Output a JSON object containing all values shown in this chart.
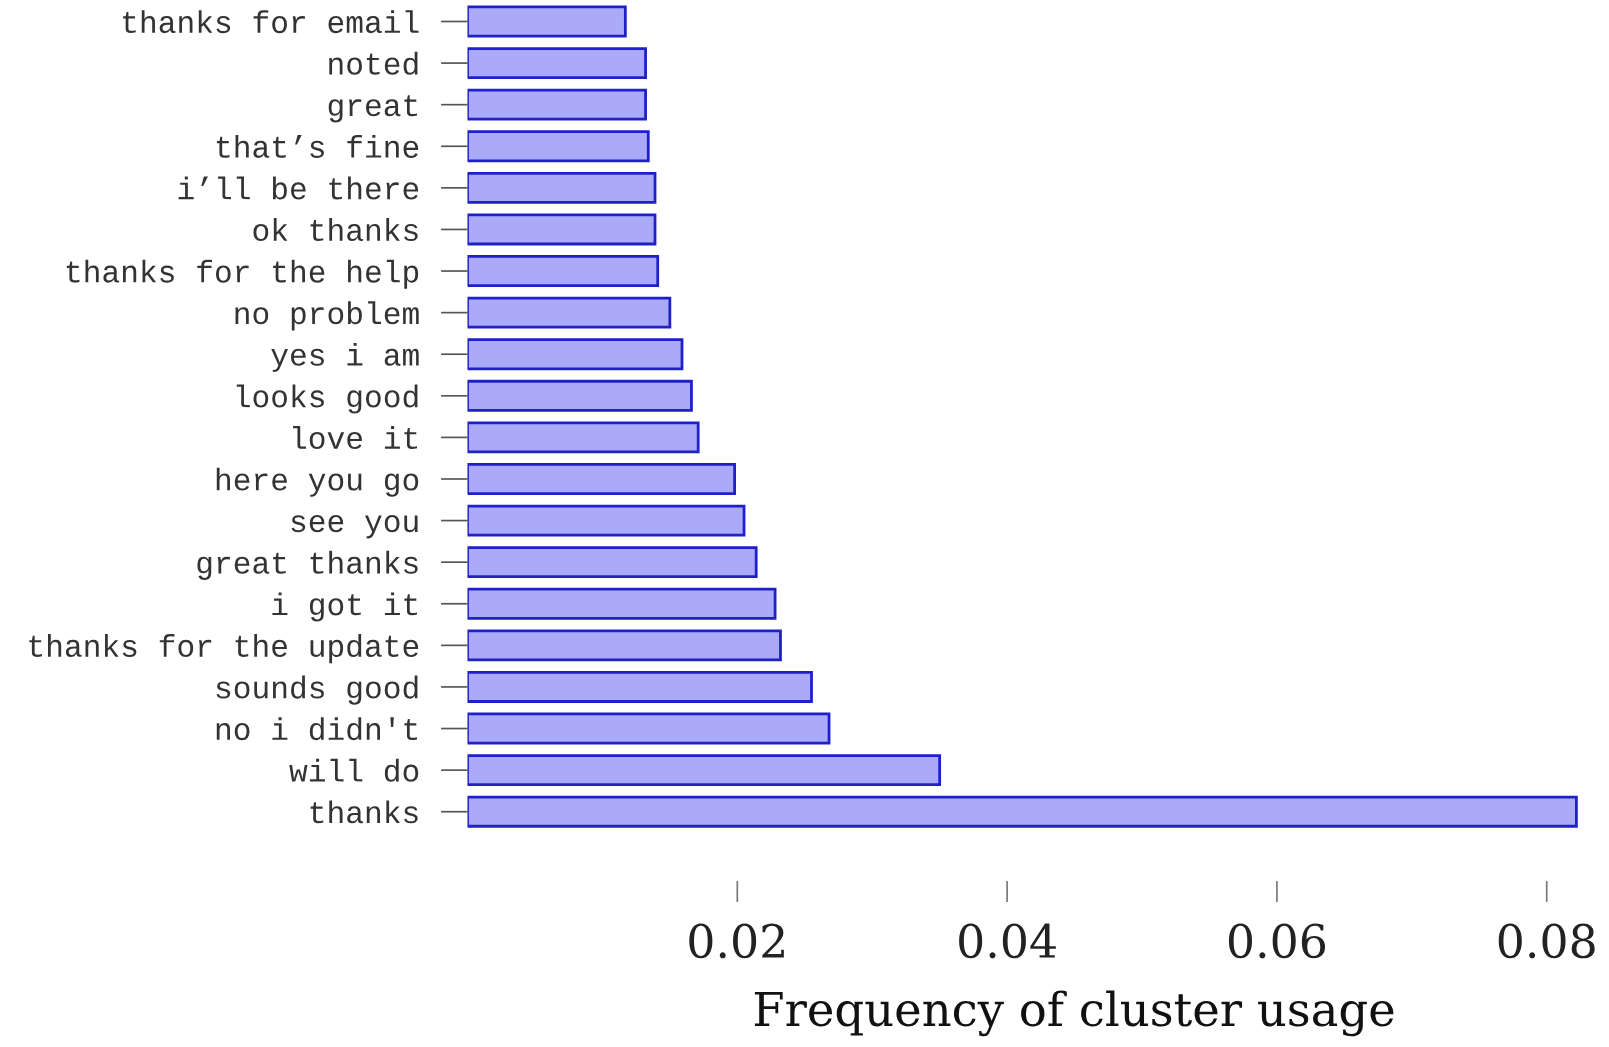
{
  "chart_data": {
    "type": "bar",
    "orientation": "horizontal",
    "xlabel": "Frequency of cluster usage",
    "categories": [
      "thanks for email",
      "noted",
      "great",
      "that’s fine",
      "i’ll be there",
      "ok thanks",
      "thanks for the help",
      "no problem",
      "yes i am",
      "looks good",
      "love it",
      "here you go",
      "see you",
      "great thanks",
      "i got it",
      "thanks for the update",
      "sounds good",
      "no i didn't",
      "will do",
      "thanks"
    ],
    "values": [
      0.0117,
      0.0132,
      0.0132,
      0.0134,
      0.0139,
      0.0139,
      0.0141,
      0.015,
      0.0159,
      0.0166,
      0.0171,
      0.0198,
      0.0205,
      0.0214,
      0.0228,
      0.0232,
      0.0255,
      0.0268,
      0.035,
      0.0822
    ],
    "color": "#aaaaf8",
    "xlim": [
      0,
      0.083
    ],
    "xticks": [
      0.02,
      0.04,
      0.06,
      0.08
    ]
  }
}
